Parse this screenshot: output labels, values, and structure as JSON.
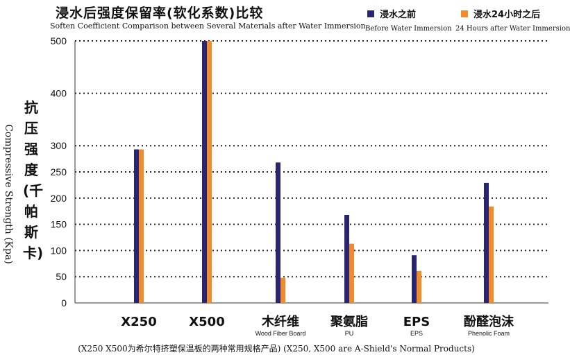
{
  "title_cn": "浸水后强度保留率(软化系数)比较",
  "title_en": "Soften Coefficient Comparison between Several Materials after Water Immersion",
  "footnote": "(X250 X500为希尔特挤塑保温板的两种常用规格产品) (X250, X500 are A-Shield's Normal Products)",
  "legend": [
    {
      "cn": "浸水之前",
      "en": "Before Water Immersion",
      "color": "#2a2573"
    },
    {
      "cn": "浸水24小时之后",
      "en": "24 Hours after Water Immersion",
      "color": "#f08c2e"
    }
  ],
  "ylabel_cn": "抗压强度(千帕斯卡)",
  "ylabel_en": "Compressive Strength (Kpa)",
  "chart_data": {
    "type": "bar",
    "title": "浸水后强度保留率(软化系数)比较",
    "subtitle": "Soften Coefficient Comparison between Several Materials after Water Immersion",
    "categories": [
      "X250",
      "X500",
      "木纤维",
      "聚氨脂",
      "EPS",
      "酚醛泡沫"
    ],
    "category_sublabels": [
      "",
      "",
      "Wood Fiber Board",
      "PU",
      "EPS",
      "Phenolic Foam"
    ],
    "series": [
      {
        "name": "浸水之前 Before Water Immersion",
        "values": [
          293,
          500,
          268,
          168,
          91,
          229
        ],
        "color": "#2a2573"
      },
      {
        "name": "浸水24小时之后 24 Hours after Water Immersion",
        "values": [
          293,
          500,
          48,
          113,
          61,
          184
        ],
        "color": "#f08c2e"
      }
    ],
    "ylabel": "抗压强度(千帕斯卡) Compressive Strength (Kpa)",
    "ylim": [
      0,
      500
    ],
    "yticks": [
      0,
      50,
      100,
      150,
      200,
      250,
      300,
      400,
      500
    ],
    "grid": true,
    "grid_style": "dotted",
    "legend_position": "top-right"
  }
}
